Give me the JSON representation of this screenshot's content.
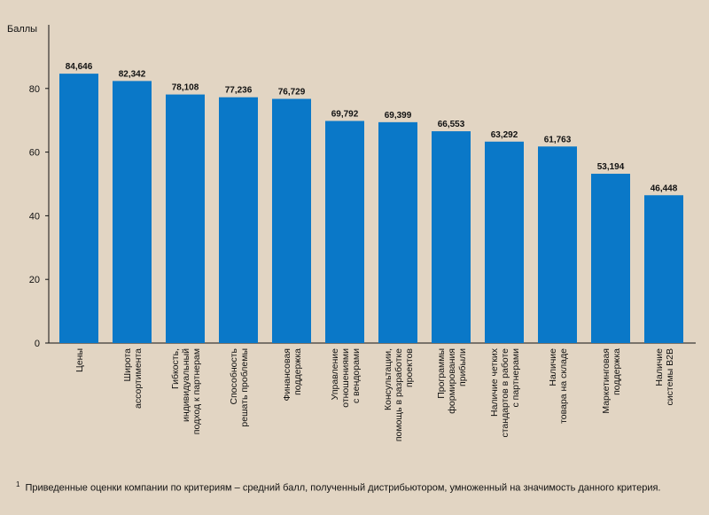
{
  "chart_data": {
    "type": "bar",
    "ylabel": "Баллы",
    "ylim": [
      0,
      100
    ],
    "yticks": [
      0,
      20,
      40,
      60,
      80
    ],
    "grid": false,
    "bar_color": "#0a78c8",
    "categories": [
      [
        "Цены"
      ],
      [
        "Широта",
        "ассортимента"
      ],
      [
        "Гибкость,",
        "индивидуальный",
        "подход к партнерам"
      ],
      [
        "Способность",
        "решать проблемы"
      ],
      [
        "Финансовая",
        "поддержка"
      ],
      [
        "Управление",
        "отношениями",
        "с вендорами"
      ],
      [
        "Консультации,",
        "помощь в разработке",
        "проектов"
      ],
      [
        "Программы",
        "формирования",
        "прибыли"
      ],
      [
        "Наличие четких",
        "стандартов в работе",
        "с партнерами"
      ],
      [
        "Наличие",
        "товара на складе"
      ],
      [
        "Маркетинговая",
        "поддержка"
      ],
      [
        "Наличие",
        "системы B2B"
      ]
    ],
    "values": [
      84.646,
      82.342,
      78.108,
      77.236,
      76.729,
      69.792,
      69.399,
      66.553,
      63.292,
      61.763,
      53.194,
      46.448
    ],
    "value_labels": [
      "84,646",
      "82,342",
      "78,108",
      "77,236",
      "76,729",
      "69,792",
      "69,399",
      "66,553",
      "63,292",
      "61,763",
      "53,194",
      "46,448"
    ]
  },
  "footnote": {
    "marker": "1",
    "text": "Приведенные оценки компании по критериям – средний балл, полученный дистрибьютором, умноженный на значимость данного критерия."
  }
}
